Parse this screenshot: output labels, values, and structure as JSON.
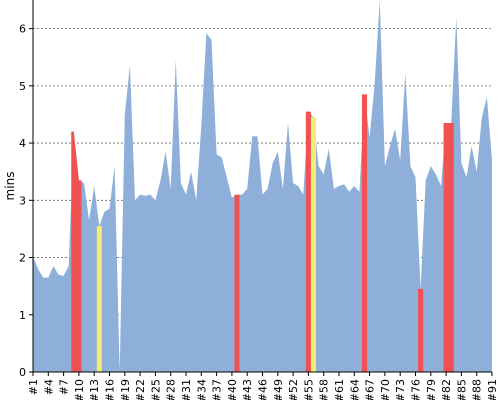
{
  "chart_data": {
    "type": "area",
    "title": "",
    "xlabel": "",
    "ylabel": "mins",
    "ylim": [
      0,
      6.5
    ],
    "yticks": [
      0,
      1,
      2,
      3,
      4,
      5,
      6
    ],
    "grid": "horizontal dashed",
    "colors": {
      "base": "#8DAFD9",
      "red": "#F05252",
      "yellow": "#F5EC72"
    },
    "x": [
      1,
      2,
      3,
      4,
      5,
      6,
      7,
      8,
      9,
      10,
      11,
      12,
      13,
      14,
      15,
      16,
      17,
      18,
      19,
      20,
      21,
      22,
      23,
      24,
      25,
      26,
      27,
      28,
      29,
      30,
      31,
      32,
      33,
      34,
      35,
      36,
      37,
      38,
      39,
      40,
      41,
      42,
      43,
      44,
      45,
      46,
      47,
      48,
      49,
      50,
      51,
      52,
      53,
      54,
      55,
      56,
      57,
      58,
      59,
      60,
      61,
      62,
      63,
      64,
      65,
      66,
      67,
      68,
      69,
      70,
      71,
      72,
      73,
      74,
      75,
      76,
      77,
      78,
      79,
      80,
      81,
      82,
      83,
      84,
      85,
      86,
      87,
      88,
      89,
      90,
      91
    ],
    "values": [
      2.02,
      1.8,
      1.65,
      1.65,
      1.85,
      1.7,
      1.68,
      1.85,
      4.2,
      3.35,
      3.3,
      2.65,
      3.25,
      2.55,
      2.8,
      2.85,
      3.6,
      0.0,
      4.5,
      5.35,
      3.0,
      3.1,
      3.08,
      3.1,
      3.0,
      3.35,
      3.85,
      3.2,
      5.45,
      3.3,
      3.1,
      3.5,
      3.0,
      4.3,
      5.92,
      5.8,
      3.8,
      3.75,
      3.4,
      3.05,
      3.1,
      3.1,
      3.2,
      4.12,
      4.12,
      3.1,
      3.2,
      3.65,
      3.85,
      3.2,
      4.35,
      3.3,
      3.25,
      3.1,
      4.55,
      4.45,
      3.6,
      3.45,
      3.9,
      3.2,
      3.25,
      3.28,
      3.15,
      3.25,
      3.15,
      4.85,
      4.1,
      5.05,
      6.5,
      3.6,
      3.95,
      4.25,
      3.7,
      5.22,
      3.6,
      3.4,
      1.45,
      3.35,
      3.6,
      3.45,
      3.25,
      4.35,
      4.35,
      6.2,
      3.65,
      3.4,
      3.95,
      3.5,
      4.45,
      4.8,
      3.7
    ],
    "highlights": [
      {
        "color": "red",
        "x": [
          9,
          10
        ]
      },
      {
        "color": "yellow",
        "x": [
          14
        ]
      },
      {
        "color": "red",
        "x": [
          18
        ]
      },
      {
        "color": "red",
        "x": [
          41
        ]
      },
      {
        "color": "red",
        "x": [
          55
        ]
      },
      {
        "color": "yellow",
        "x": [
          56
        ]
      },
      {
        "color": "red",
        "x": [
          66
        ]
      },
      {
        "color": "red",
        "x": [
          77
        ]
      },
      {
        "color": "red",
        "x": [
          82,
          83
        ]
      }
    ],
    "xtick_labels": [
      "#1",
      "#4",
      "#7",
      "#10",
      "#13",
      "#16",
      "#19",
      "#22",
      "#25",
      "#28",
      "#31",
      "#34",
      "#37",
      "#40",
      "#43",
      "#46",
      "#49",
      "#52",
      "#55",
      "#58",
      "#61",
      "#64",
      "#67",
      "#70",
      "#73",
      "#76",
      "#79",
      "#82",
      "#85",
      "#88",
      "#91"
    ]
  }
}
